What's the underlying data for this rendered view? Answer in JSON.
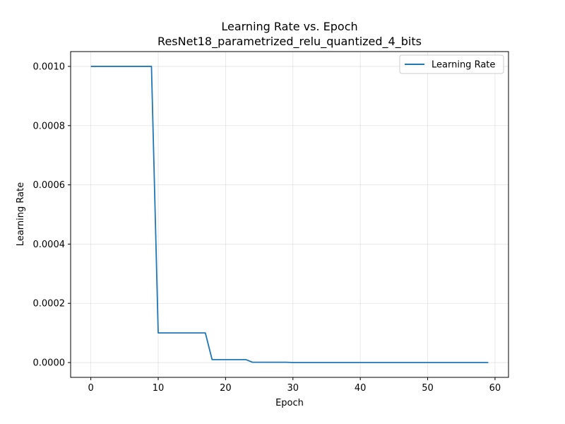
{
  "chart_data": {
    "type": "line",
    "title": "Learning Rate vs. Epoch",
    "subtitle": "ResNet18_parametrized_relu_quantized_4_bits",
    "xlabel": "Epoch",
    "ylabel": "Learning Rate",
    "xlim": [
      -3,
      62
    ],
    "ylim": [
      -5e-05,
      0.00105
    ],
    "xticks": [
      0,
      10,
      20,
      30,
      40,
      50,
      60
    ],
    "xtick_labels": [
      "0",
      "10",
      "20",
      "30",
      "40",
      "50",
      "60"
    ],
    "yticks": [
      0.0,
      0.0002,
      0.0004,
      0.0006,
      0.0008,
      0.001
    ],
    "ytick_labels": [
      "0.0000",
      "0.0002",
      "0.0004",
      "0.0006",
      "0.0008",
      "0.0010"
    ],
    "grid": true,
    "legend_position": "top-right",
    "series": [
      {
        "name": "Learning Rate",
        "color": "#1f77b4",
        "x": [
          0,
          1,
          2,
          3,
          4,
          5,
          6,
          7,
          8,
          9,
          10,
          11,
          12,
          13,
          14,
          15,
          16,
          17,
          18,
          19,
          20,
          21,
          22,
          23,
          24,
          25,
          26,
          27,
          28,
          29,
          30,
          31,
          32,
          33,
          34,
          35,
          36,
          37,
          38,
          39,
          40,
          41,
          42,
          43,
          44,
          45,
          46,
          47,
          48,
          49,
          50,
          51,
          52,
          53,
          54,
          55,
          56,
          57,
          58,
          59
        ],
        "y": [
          0.001,
          0.001,
          0.001,
          0.001,
          0.001,
          0.001,
          0.001,
          0.001,
          0.001,
          0.001,
          0.0001,
          0.0001,
          0.0001,
          0.0001,
          0.0001,
          0.0001,
          0.0001,
          0.0001,
          1e-05,
          1e-05,
          1e-05,
          1e-05,
          1e-05,
          1e-05,
          1e-06,
          1e-06,
          1e-06,
          1e-06,
          1e-06,
          1e-06,
          1e-07,
          1e-07,
          1e-07,
          1e-07,
          1e-07,
          1e-07,
          1e-07,
          1e-07,
          1e-07,
          1e-07,
          1e-07,
          1e-07,
          1e-07,
          1e-07,
          1e-07,
          1e-07,
          1e-07,
          1e-07,
          1e-07,
          1e-07,
          1e-07,
          1e-07,
          1e-07,
          1e-07,
          1e-07,
          1e-07,
          1e-07,
          1e-07,
          1e-07,
          1e-07
        ]
      }
    ]
  }
}
